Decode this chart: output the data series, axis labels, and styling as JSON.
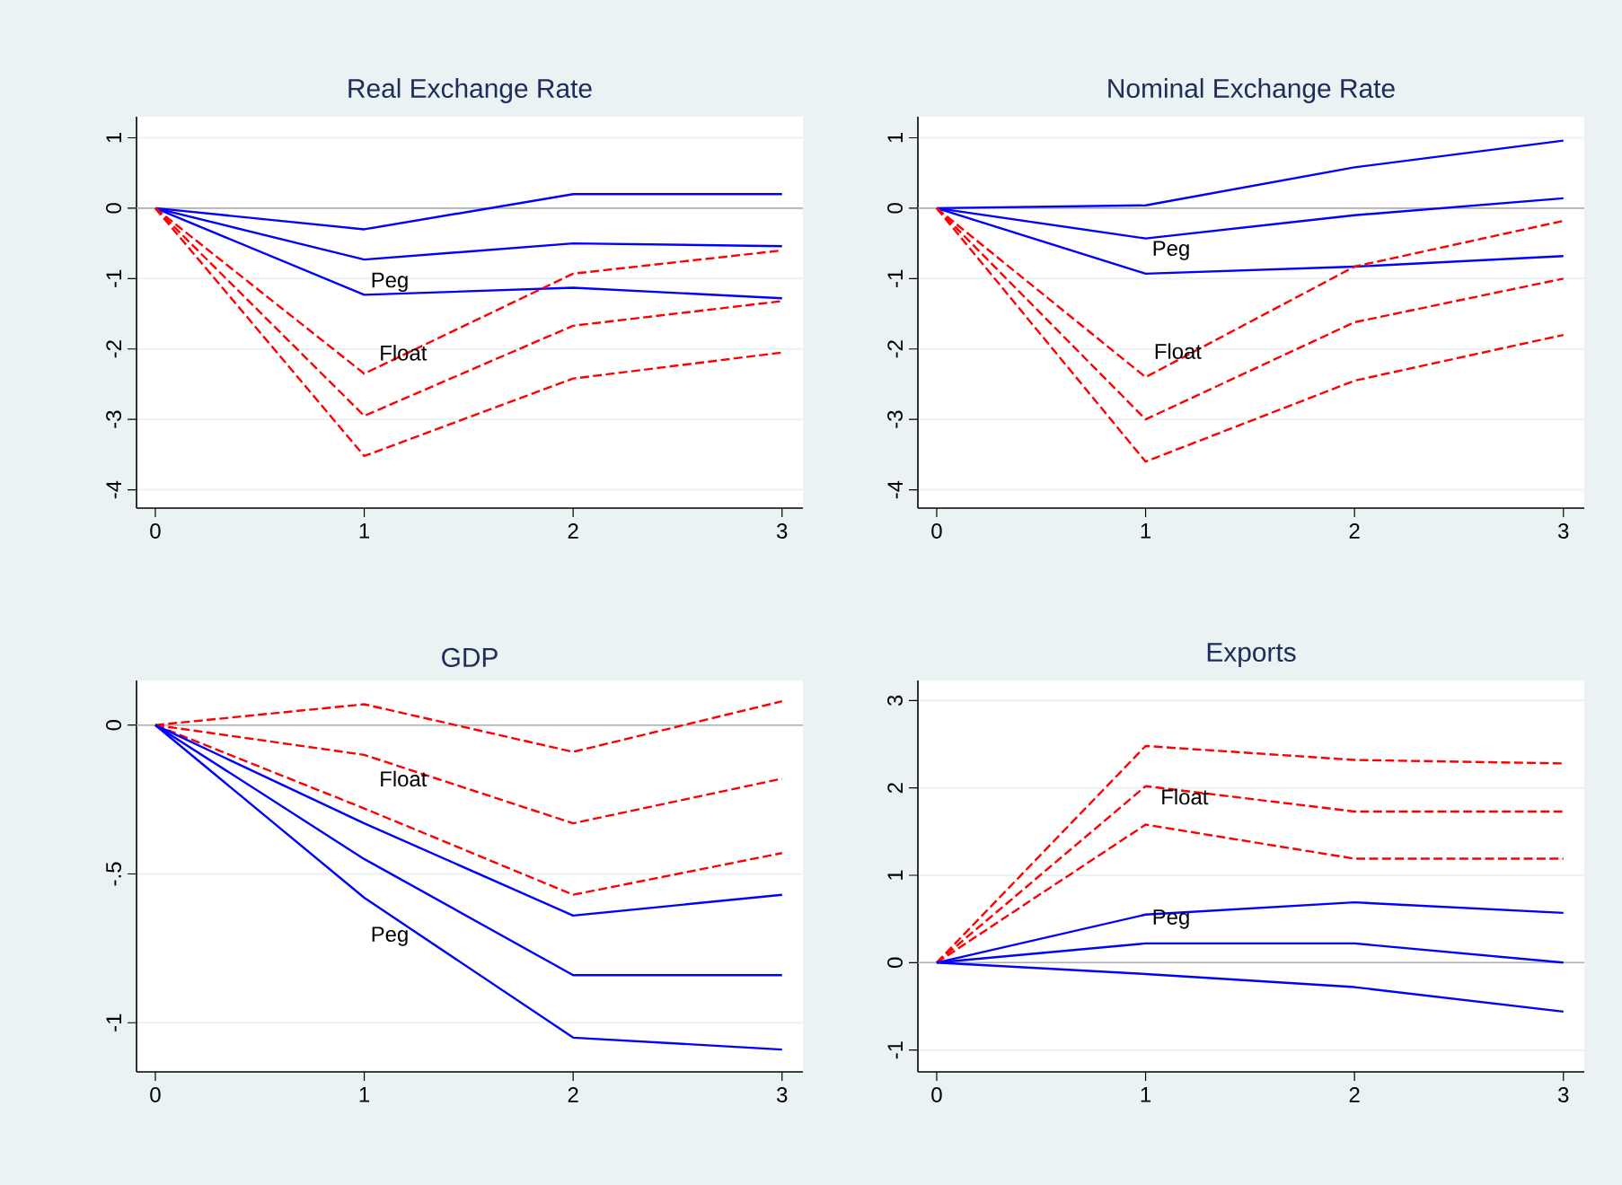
{
  "chart_data": [
    {
      "type": "line",
      "title": "Real Exchange Rate",
      "x": [
        0,
        1,
        2,
        3
      ],
      "xlim": [
        -0.09,
        3.1
      ],
      "xticks": [
        0,
        1,
        2,
        3
      ],
      "ylim": [
        -4.26,
        1.3
      ],
      "yticks": [
        -4,
        -3,
        -2,
        -1,
        0,
        1
      ],
      "grid": "y",
      "ref_lines": [
        {
          "axis": "y",
          "value": 0,
          "color": "#b0b0b0"
        }
      ],
      "series": [
        {
          "color": "#0000ff",
          "line_style": "solid",
          "values": [
            0,
            -0.3,
            0.2,
            0.2
          ]
        },
        {
          "color": "#0000ff",
          "line_style": "solid",
          "values": [
            0,
            -0.73,
            -0.5,
            -0.54
          ]
        },
        {
          "color": "#0000ff",
          "line_style": "solid",
          "values": [
            0,
            -1.23,
            -1.13,
            -1.28
          ]
        },
        {
          "color": "#ff0000",
          "line_style": "dashed",
          "values": [
            0,
            -2.35,
            -0.93,
            -0.6
          ]
        },
        {
          "color": "#ff0000",
          "line_style": "dashed",
          "values": [
            0,
            -2.95,
            -1.67,
            -1.32
          ]
        },
        {
          "color": "#ff0000",
          "line_style": "dashed",
          "values": [
            0,
            -3.52,
            -2.42,
            -2.05
          ]
        }
      ],
      "annotations": [
        "Peg",
        "Float"
      ]
    },
    {
      "type": "line",
      "title": "Nominal Exchange Rate",
      "x": [
        0,
        1,
        2,
        3
      ],
      "xlim": [
        -0.09,
        3.1
      ],
      "xticks": [
        0,
        1,
        2,
        3
      ],
      "ylim": [
        -4.26,
        1.3
      ],
      "yticks": [
        -4,
        -3,
        -2,
        -1,
        0,
        1
      ],
      "grid": "y",
      "ref_lines": [
        {
          "axis": "y",
          "value": 0,
          "color": "#b0b0b0"
        }
      ],
      "series": [
        {
          "color": "#0000ff",
          "line_style": "solid",
          "values": [
            0,
            0.04,
            0.58,
            0.96
          ]
        },
        {
          "color": "#0000ff",
          "line_style": "solid",
          "values": [
            0,
            -0.43,
            -0.1,
            0.14
          ]
        },
        {
          "color": "#0000ff",
          "line_style": "solid",
          "values": [
            0,
            -0.93,
            -0.83,
            -0.68
          ]
        },
        {
          "color": "#ff0000",
          "line_style": "dashed",
          "values": [
            0,
            -2.4,
            -0.83,
            -0.18
          ]
        },
        {
          "color": "#ff0000",
          "line_style": "dashed",
          "values": [
            0,
            -3.0,
            -1.62,
            -1.0
          ]
        },
        {
          "color": "#ff0000",
          "line_style": "dashed",
          "values": [
            0,
            -3.6,
            -2.45,
            -1.8
          ]
        }
      ],
      "annotations": [
        "Peg",
        "Float"
      ]
    },
    {
      "type": "line",
      "title": "GDP",
      "x": [
        0,
        1,
        2,
        3
      ],
      "xlim": [
        -0.09,
        3.1
      ],
      "xticks": [
        0,
        1,
        2,
        3
      ],
      "ylim": [
        -1.165,
        0.15
      ],
      "yticks": [
        -1,
        {
          "value": -0.5,
          "label": "-.5"
        },
        0
      ],
      "grid": "y",
      "ref_lines": [
        {
          "axis": "y",
          "value": 0,
          "color": "#b0b0b0"
        }
      ],
      "series": [
        {
          "color": "#ff0000",
          "line_style": "dashed",
          "values": [
            0,
            0.07,
            -0.09,
            0.08
          ]
        },
        {
          "color": "#ff0000",
          "line_style": "dashed",
          "values": [
            0,
            -0.1,
            -0.33,
            -0.18
          ]
        },
        {
          "color": "#ff0000",
          "line_style": "dashed",
          "values": [
            0,
            -0.28,
            -0.57,
            -0.43
          ]
        },
        {
          "color": "#0000ff",
          "line_style": "solid",
          "values": [
            0,
            -0.33,
            -0.64,
            -0.57
          ]
        },
        {
          "color": "#0000ff",
          "line_style": "solid",
          "values": [
            0,
            -0.45,
            -0.84,
            -0.84
          ]
        },
        {
          "color": "#0000ff",
          "line_style": "solid",
          "values": [
            0,
            -0.58,
            -1.05,
            -1.09
          ]
        }
      ],
      "annotations": [
        "Float",
        "Peg"
      ]
    },
    {
      "type": "line",
      "title": "Exports",
      "x": [
        0,
        1,
        2,
        3
      ],
      "xlim": [
        -0.09,
        3.1
      ],
      "xticks": [
        0,
        1,
        2,
        3
      ],
      "ylim": [
        -1.25,
        3.23
      ],
      "yticks": [
        -1,
        0,
        1,
        2,
        3
      ],
      "grid": "y",
      "ref_lines": [
        {
          "axis": "y",
          "value": 0,
          "color": "#b0b0b0"
        }
      ],
      "series": [
        {
          "color": "#ff0000",
          "line_style": "dashed",
          "values": [
            0,
            2.48,
            2.32,
            2.28
          ]
        },
        {
          "color": "#ff0000",
          "line_style": "dashed",
          "values": [
            0,
            2.02,
            1.73,
            1.73
          ]
        },
        {
          "color": "#ff0000",
          "line_style": "dashed",
          "values": [
            0,
            1.58,
            1.19,
            1.19
          ]
        },
        {
          "color": "#0000ff",
          "line_style": "solid",
          "values": [
            0,
            0.55,
            0.69,
            0.57
          ]
        },
        {
          "color": "#0000ff",
          "line_style": "solid",
          "values": [
            0,
            0.22,
            0.22,
            0.0
          ]
        },
        {
          "color": "#0000ff",
          "line_style": "solid",
          "values": [
            0,
            -0.13,
            -0.28,
            -0.56
          ]
        }
      ],
      "annotations": [
        "Float",
        "Peg"
      ]
    }
  ]
}
